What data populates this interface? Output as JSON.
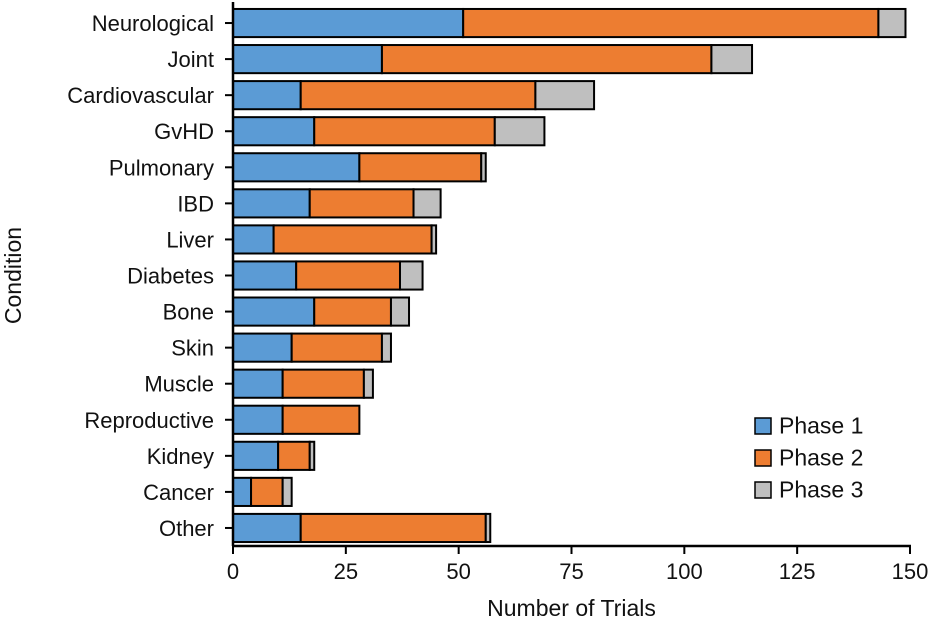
{
  "chart_data": {
    "type": "bar",
    "orientation": "horizontal",
    "stacked": true,
    "title": "",
    "xlabel": "Number of Trials",
    "ylabel": "Condition",
    "xlim": [
      0,
      150
    ],
    "xticks": [
      0,
      25,
      50,
      75,
      100,
      125,
      150
    ],
    "grid": false,
    "legend_position": "bottom-right",
    "categories": [
      "Neurological",
      "Joint",
      "Cardiovascular",
      "GvHD",
      "Pulmonary",
      "IBD",
      "Liver",
      "Diabetes",
      "Bone",
      "Skin",
      "Muscle",
      "Reproductive",
      "Kidney",
      "Cancer",
      "Other"
    ],
    "series": [
      {
        "name": "Phase 1",
        "color": "#5B9BD5",
        "values": [
          51,
          33,
          15,
          18,
          28,
          17,
          9,
          14,
          18,
          13,
          11,
          11,
          10,
          4,
          15
        ]
      },
      {
        "name": "Phase 2",
        "color": "#ED7D31",
        "values": [
          92,
          73,
          52,
          40,
          27,
          23,
          35,
          23,
          17,
          20,
          18,
          17,
          7,
          7,
          41
        ]
      },
      {
        "name": "Phase 3",
        "color": "#BFBFBF",
        "values": [
          6,
          9,
          13,
          11,
          1,
          6,
          1,
          5,
          4,
          2,
          2,
          0,
          1,
          2,
          1
        ]
      }
    ]
  }
}
